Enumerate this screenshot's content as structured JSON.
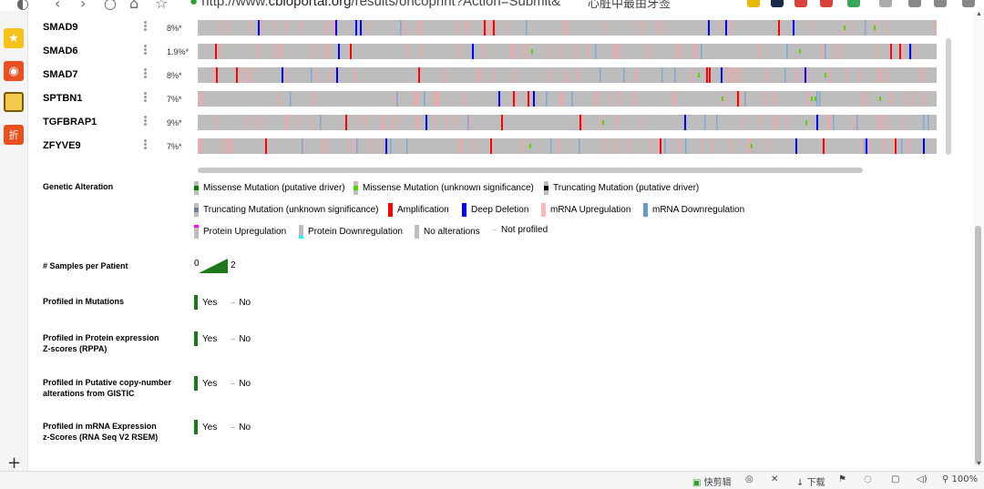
{
  "browser": {
    "url_prefix": "http://www.",
    "url_domain": "cbioportal.org",
    "url_rest": "/results/oncoprint?Action=Submit&",
    "search_text": "心脏中最由牙签"
  },
  "oncoprint": {
    "genes": [
      {
        "name": "SMAD9",
        "pct": "8%*"
      },
      {
        "name": "SMAD6",
        "pct": "1.9%*"
      },
      {
        "name": "SMAD7",
        "pct": "8%*"
      },
      {
        "name": "SPTBN1",
        "pct": "7%*"
      },
      {
        "name": "TGFBRAP1",
        "pct": "9%*"
      },
      {
        "name": "ZFYVE9",
        "pct": "7%*"
      }
    ]
  },
  "legend": {
    "title": "Genetic Alteration",
    "items": [
      {
        "label": "Missense Mutation (putative driver)",
        "color": "#008000"
      },
      {
        "label": "Missense Mutation (unknown significance)",
        "color": "#53d400"
      },
      {
        "label": "Truncating Mutation (putative driver)",
        "color": "#000000"
      },
      {
        "label": "Truncating Mutation (unknown significance)",
        "color": "#708090"
      },
      {
        "label": "Amplification",
        "color": "#ff0000"
      },
      {
        "label": "Deep Deletion",
        "color": "#0000ff"
      },
      {
        "label": "mRNA Upregulation",
        "color": "#ffb6b6"
      },
      {
        "label": "mRNA Downregulation",
        "color": "#6699cc"
      },
      {
        "label": "Protein Upregulation",
        "color": "#ff00ff"
      },
      {
        "label": "Protein Downregulation",
        "color": "#00ffff"
      },
      {
        "label": "No alterations",
        "color": "#bebebe"
      },
      {
        "label": "Not profiled",
        "color": "#ffffff"
      }
    ]
  },
  "samples_per_patient": {
    "label": "# Samples per Patient",
    "min": "0",
    "max": "2"
  },
  "profiled": [
    {
      "label_line1": "Profiled in Mutations",
      "label_line2": "",
      "yes": "Yes",
      "no": "No"
    },
    {
      "label_line1": "Profiled in Protein expression",
      "label_line2": "Z-scores (RPPA)",
      "yes": "Yes",
      "no": "No"
    },
    {
      "label_line1": "Profiled in Putative copy-number",
      "label_line2": "alterations from GISTIC",
      "yes": "Yes",
      "no": "No"
    },
    {
      "label_line1": "Profiled in mRNA Expression",
      "label_line2": "z-Scores (RNA Seq V2 RSEM)",
      "yes": "Yes",
      "no": "No"
    }
  ],
  "statusbar": {
    "quick_clip": "快剪辑",
    "download": "下载",
    "zoom": "100%"
  },
  "colors": {
    "amplification": "#ff0000",
    "deletion": "#0000ff",
    "mrna_up": "#f4a6a6",
    "mrna_down": "#7ea6d6",
    "missense": "#53d400",
    "truncating": "#708090"
  }
}
